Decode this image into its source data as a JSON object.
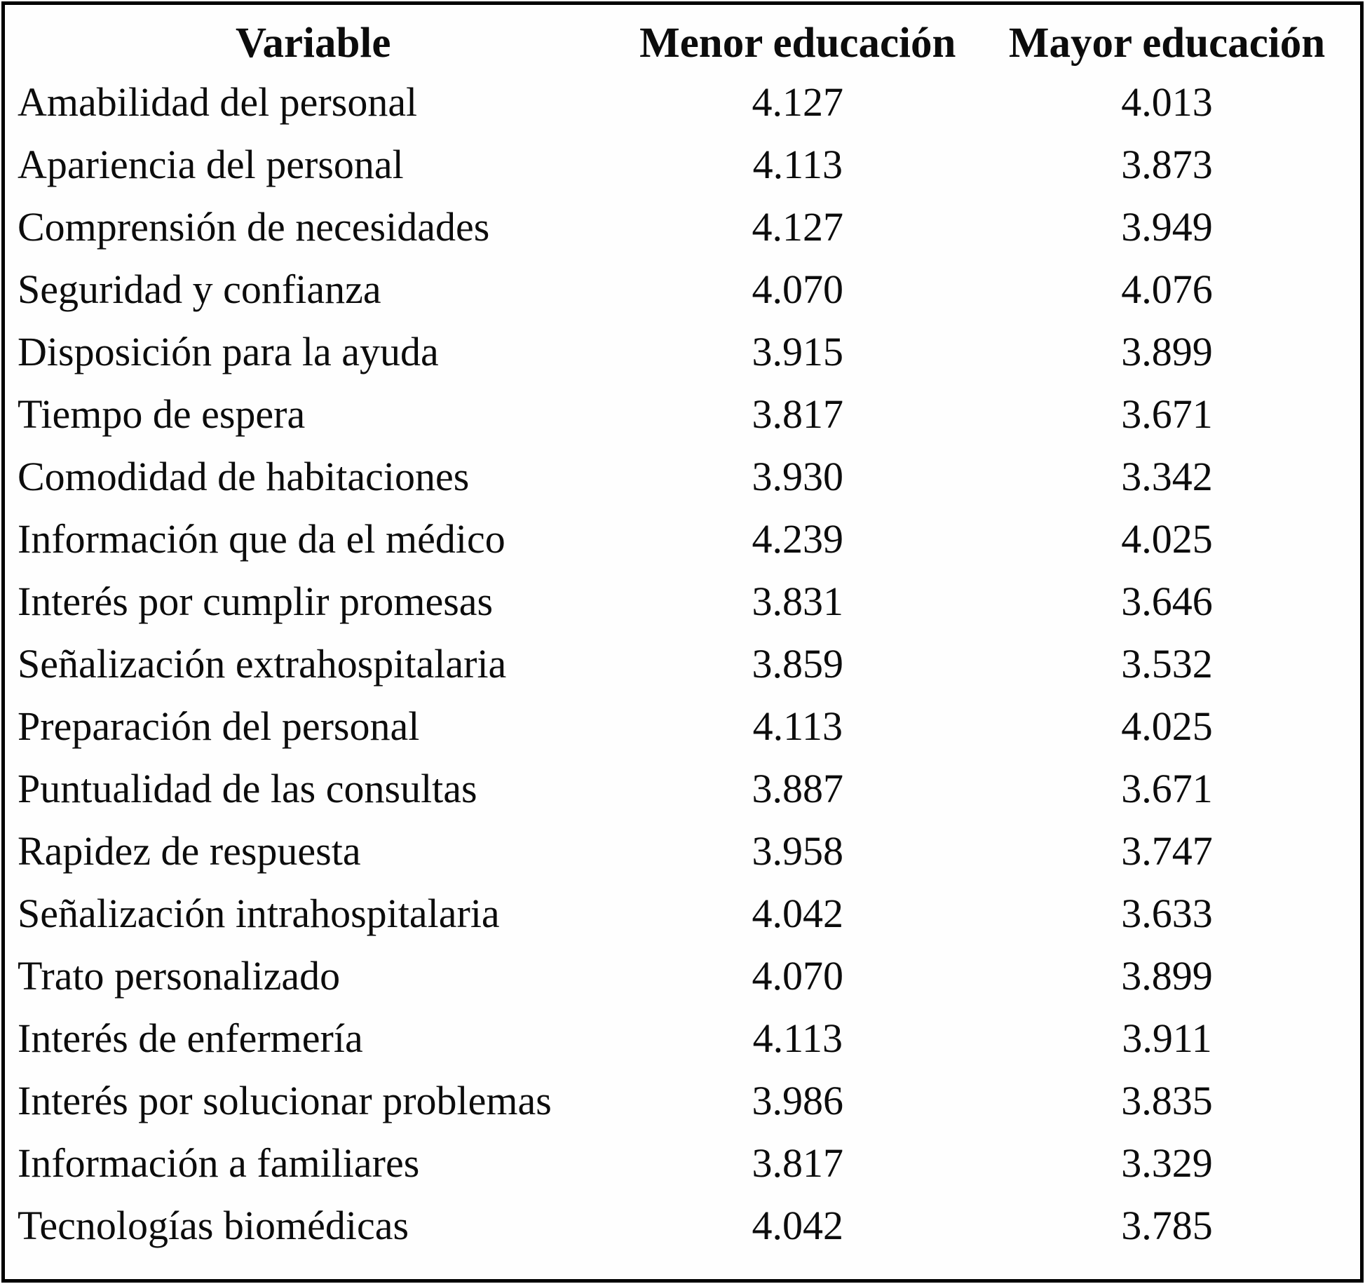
{
  "colors": {
    "border": "#000000",
    "text": "#0c0c0c",
    "background": "#ffffff"
  },
  "table": {
    "columns": [
      "Variable",
      "Menor educación",
      "Mayor educación"
    ],
    "rows": [
      {
        "variable": "Amabilidad del personal",
        "menor": "4.127",
        "mayor": "4.013"
      },
      {
        "variable": "Apariencia del personal",
        "menor": "4.113",
        "mayor": "3.873"
      },
      {
        "variable": "Comprensión de necesidades",
        "menor": "4.127",
        "mayor": "3.949"
      },
      {
        "variable": "Seguridad y confianza",
        "menor": "4.070",
        "mayor": "4.076"
      },
      {
        "variable": "Disposición para la ayuda",
        "menor": "3.915",
        "mayor": "3.899"
      },
      {
        "variable": "Tiempo de espera",
        "menor": "3.817",
        "mayor": "3.671"
      },
      {
        "variable": "Comodidad de habitaciones",
        "menor": "3.930",
        "mayor": "3.342"
      },
      {
        "variable": "Información que da el médico",
        "menor": "4.239",
        "mayor": "4.025"
      },
      {
        "variable": "Interés por cumplir promesas",
        "menor": "3.831",
        "mayor": "3.646"
      },
      {
        "variable": "Señalización extrahospitalaria",
        "menor": "3.859",
        "mayor": "3.532"
      },
      {
        "variable": "Preparación del personal",
        "menor": "4.113",
        "mayor": "4.025"
      },
      {
        "variable": "Puntualidad de las consultas",
        "menor": "3.887",
        "mayor": "3.671"
      },
      {
        "variable": "Rapidez de respuesta",
        "menor": "3.958",
        "mayor": "3.747"
      },
      {
        "variable": "Señalización intrahospitalaria",
        "menor": "4.042",
        "mayor": "3.633"
      },
      {
        "variable": "Trato personalizado",
        "menor": "4.070",
        "mayor": "3.899"
      },
      {
        "variable": "Interés de enfermería",
        "menor": "4.113",
        "mayor": "3.911"
      },
      {
        "variable": "Interés por solucionar problemas",
        "menor": "3.986",
        "mayor": "3.835"
      },
      {
        "variable": "Información a familiares",
        "menor": "3.817",
        "mayor": "3.329"
      },
      {
        "variable": "Tecnologías biomédicas",
        "menor": "4.042",
        "mayor": "3.785"
      }
    ]
  },
  "chart_data": {
    "type": "table",
    "title": "",
    "categories": [
      "Amabilidad del personal",
      "Apariencia del personal",
      "Comprensión de necesidades",
      "Seguridad y confianza",
      "Disposición para la ayuda",
      "Tiempo de espera",
      "Comodidad de habitaciones",
      "Información que da el médico",
      "Interés por cumplir promesas",
      "Señalización extrahospitalaria",
      "Preparación del personal",
      "Puntualidad de las consultas",
      "Rapidez de respuesta",
      "Señalización intrahospitalaria",
      "Trato personalizado",
      "Interés de enfermería",
      "Interés por solucionar problemas",
      "Información a familiares",
      "Tecnologías biomédicas"
    ],
    "series": [
      {
        "name": "Menor educación",
        "values": [
          4.127,
          4.113,
          4.127,
          4.07,
          3.915,
          3.817,
          3.93,
          4.239,
          3.831,
          3.859,
          4.113,
          3.887,
          3.958,
          4.042,
          4.07,
          4.113,
          3.986,
          3.817,
          4.042
        ]
      },
      {
        "name": "Mayor educación",
        "values": [
          4.013,
          3.873,
          3.949,
          4.076,
          3.899,
          3.671,
          3.342,
          4.025,
          3.646,
          3.532,
          4.025,
          3.671,
          3.747,
          3.633,
          3.899,
          3.911,
          3.835,
          3.329,
          3.785
        ]
      }
    ]
  }
}
